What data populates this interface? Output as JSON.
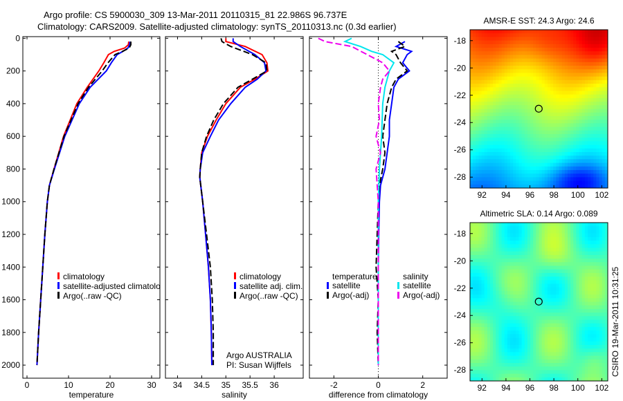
{
  "header": {
    "line1": "Argo profile: CS 5900030_309 13-Mar-2011 20110315_81 22.986S 96.737E",
    "line2": "Climatology: CARS2009. Satellite-adjusted climatology: synTS_20110313.nc (0.3d earlier)"
  },
  "depth_axis": {
    "ticks": [
      "0",
      "200",
      "400",
      "600",
      "800",
      "1000",
      "1200",
      "1400",
      "1600",
      "1800",
      "2000"
    ]
  },
  "colors": {
    "red": "#ff0000",
    "blue": "#0000ff",
    "black": "#000000",
    "cyan": "#00e5ee",
    "magenta": "#ee00ee"
  },
  "chart_data": [
    {
      "type": "line",
      "id": "temperature",
      "xlabel": "temperature",
      "xlim": [
        -1,
        32
      ],
      "ylim": [
        2080,
        -10
      ],
      "x_ticks": [
        "0",
        "10",
        "20",
        "30"
      ],
      "legend": [
        "climatology",
        "satellite-adjusted climatology",
        "Argo(..raw -QC)"
      ],
      "series": [
        {
          "name": "climatology",
          "color": "red",
          "dash": false,
          "depth": [
            20,
            40,
            60,
            80,
            100,
            150,
            200,
            300,
            400,
            600,
            800,
            900,
            1000,
            1200,
            1400,
            1600,
            1800,
            2000
          ],
          "values": [
            24.5,
            24.4,
            23.5,
            21.0,
            19.6,
            18.5,
            17.3,
            14.5,
            12.0,
            8.8,
            6.5,
            5.4,
            4.9,
            4.3,
            3.8,
            3.3,
            2.8,
            2.4
          ]
        },
        {
          "name": "satellite-adjusted climatology",
          "color": "blue",
          "dash": false,
          "depth": [
            20,
            40,
            60,
            80,
            100,
            150,
            200,
            300,
            400,
            600,
            800,
            900,
            1000,
            1200,
            1400,
            1600,
            1800,
            2000
          ],
          "values": [
            24.8,
            24.7,
            24.3,
            23.1,
            21.7,
            20.3,
            19.1,
            15.2,
            12.6,
            9.1,
            6.6,
            5.4,
            4.9,
            4.3,
            3.8,
            3.3,
            2.8,
            2.4
          ]
        },
        {
          "name": "Argo(..raw -QC)",
          "color": "black",
          "dash": true,
          "depth": [
            20,
            40,
            60,
            80,
            100,
            150,
            200,
            300,
            400,
            600,
            800,
            900,
            1000,
            1200,
            1400,
            1600,
            1800,
            2000
          ],
          "values": [
            25.0,
            25.0,
            24.6,
            23.0,
            21.2,
            19.5,
            18.1,
            14.8,
            12.3,
            8.9,
            6.5,
            5.4,
            4.9,
            4.3,
            3.8,
            3.3,
            2.8,
            2.4
          ]
        }
      ]
    },
    {
      "type": "line",
      "id": "salinity",
      "xlabel": "salinity",
      "xlim": [
        33.75,
        36.6
      ],
      "ylim": [
        2080,
        -10
      ],
      "x_ticks": [
        "34",
        "34.5",
        "35",
        "35.5",
        "36"
      ],
      "legend": [
        "climatology",
        "satellite adj. clim.",
        "Argo(..raw -QC)"
      ],
      "annotation": [
        "Argo AUSTRALIA",
        "PI: Susan Wijffels"
      ],
      "series": [
        {
          "name": "climatology",
          "color": "red",
          "dash": false,
          "depth": [
            0,
            20,
            50,
            100,
            150,
            200,
            250,
            300,
            400,
            500,
            600,
            700,
            800,
            850,
            900,
            1000,
            1200,
            1400,
            1600,
            1800,
            2000
          ],
          "values": [
            35.0,
            35.0,
            35.4,
            35.75,
            35.85,
            35.87,
            35.6,
            35.3,
            35.0,
            34.8,
            34.62,
            34.5,
            34.47,
            34.46,
            34.48,
            34.52,
            34.58,
            34.64,
            34.68,
            34.7,
            34.71
          ]
        },
        {
          "name": "satellite adj. clim.",
          "color": "blue",
          "dash": false,
          "depth": [
            0,
            20,
            50,
            100,
            150,
            200,
            250,
            300,
            400,
            500,
            600,
            700,
            800,
            850,
            900,
            1000,
            1200,
            1400,
            1600,
            1800,
            2000
          ],
          "values": [
            35.15,
            35.15,
            35.3,
            35.6,
            35.8,
            35.83,
            35.65,
            35.4,
            35.1,
            34.85,
            34.68,
            34.52,
            34.47,
            34.46,
            34.48,
            34.52,
            34.58,
            34.64,
            34.68,
            34.7,
            34.71
          ]
        },
        {
          "name": "Argo(..raw -QC)",
          "color": "black",
          "dash": true,
          "depth": [
            0,
            20,
            50,
            100,
            150,
            200,
            250,
            300,
            400,
            500,
            600,
            700,
            800,
            850,
            900,
            1000,
            1200,
            1400,
            1600,
            1800,
            2000
          ],
          "values": [
            34.9,
            34.92,
            35.1,
            35.55,
            35.83,
            35.85,
            35.55,
            35.25,
            34.95,
            34.75,
            34.6,
            34.5,
            34.47,
            34.46,
            34.48,
            34.52,
            34.6,
            34.68,
            34.72,
            34.74,
            34.74
          ]
        }
      ]
    },
    {
      "type": "line",
      "id": "difference",
      "xlabel": "difference from climatology",
      "xlim": [
        -3.1,
        3.1
      ],
      "ylim": [
        2080,
        -10
      ],
      "x_ticks": [
        "-2",
        "0",
        "2"
      ],
      "legend": {
        "temperature_title": "temperature",
        "salinity_title": "salinity",
        "temp_satellite": "satellite",
        "temp_argo": "Argo(-adj)",
        "sal_satellite": "satellite",
        "sal_argo": "Argo(-adj)"
      },
      "series": [
        {
          "name": "temperature satellite",
          "color": "blue",
          "dash": false,
          "depth": [
            20,
            50,
            80,
            100,
            150,
            200,
            250,
            300,
            400,
            500,
            600,
            700,
            800,
            900,
            1000,
            1200,
            1400,
            1600,
            1800,
            2000
          ],
          "values": [
            1.2,
            0.8,
            1.5,
            1.3,
            1.1,
            1.4,
            0.9,
            0.7,
            0.6,
            0.5,
            0.5,
            0.4,
            0.3,
            0.1,
            0.05,
            0.02,
            0.0,
            0.0,
            0.0,
            0.0
          ]
        },
        {
          "name": "temperature Argo(-adj)",
          "color": "black",
          "dash": true,
          "depth": [
            20,
            50,
            80,
            100,
            150,
            200,
            250,
            300,
            400,
            500,
            600,
            700,
            800,
            900,
            1000,
            1200,
            1400,
            1600,
            1800,
            2000
          ],
          "values": [
            0.9,
            1.2,
            0.6,
            0.8,
            1.0,
            1.3,
            0.8,
            0.6,
            0.4,
            0.3,
            0.2,
            0.3,
            0.2,
            0.05,
            0.0,
            -0.05,
            -0.1,
            0.0,
            -0.05,
            0.0
          ]
        },
        {
          "name": "salinity satellite",
          "color": "cyan",
          "dash": false,
          "depth": [
            0,
            20,
            50,
            80,
            100,
            150,
            200,
            300,
            400,
            600,
            800,
            1000,
            1200,
            1400,
            1600,
            1800,
            2000
          ],
          "values": [
            -1.2,
            -1.5,
            -0.8,
            -0.3,
            0.2,
            0.7,
            0.5,
            0.3,
            0.2,
            0.15,
            0.05,
            0.0,
            0.0,
            0.0,
            0.0,
            0.0,
            0.0
          ]
        },
        {
          "name": "salinity Argo(-adj)",
          "color": "magenta",
          "dash": true,
          "depth": [
            0,
            20,
            50,
            100,
            150,
            200,
            250,
            300,
            400,
            500,
            600,
            700,
            800,
            900,
            1000,
            1200,
            1400,
            1600,
            1800,
            2000
          ],
          "values": [
            -2.7,
            -2.4,
            -1.2,
            -0.5,
            0.2,
            0.5,
            0.2,
            0.1,
            0.0,
            0.05,
            -0.1,
            0.1,
            -0.1,
            -0.05,
            0.0,
            0.0,
            0.0,
            0.0,
            0.0,
            0.0
          ]
        }
      ]
    },
    {
      "type": "heatmap",
      "id": "sst_map",
      "title": "AMSR-E SST: 24.3 Argo: 24.6",
      "x_ticks": [
        "92",
        "94",
        "96",
        "98",
        "100",
        "102"
      ],
      "y_ticks": [
        "-18",
        "-20",
        "-22",
        "-24",
        "-26",
        "-28"
      ],
      "xlim": [
        91,
        102.5
      ],
      "ylim": [
        -28.8,
        -17.2
      ],
      "marker": {
        "lon": 96.737,
        "lat": -22.986
      }
    },
    {
      "type": "heatmap",
      "id": "sla_map",
      "title": "Altimetric SLA: 0.14 Argo: 0.089",
      "x_ticks": [
        "92",
        "94",
        "96",
        "98",
        "100",
        "102"
      ],
      "y_ticks": [
        "-18",
        "-20",
        "-22",
        "-24",
        "-26",
        "-28"
      ],
      "xlim": [
        91,
        102.5
      ],
      "ylim": [
        -28.8,
        -17.2
      ],
      "marker": {
        "lon": 96.737,
        "lat": -22.986
      }
    }
  ],
  "side_label": "CSIRO 19-Mar-2011 10:31:25"
}
